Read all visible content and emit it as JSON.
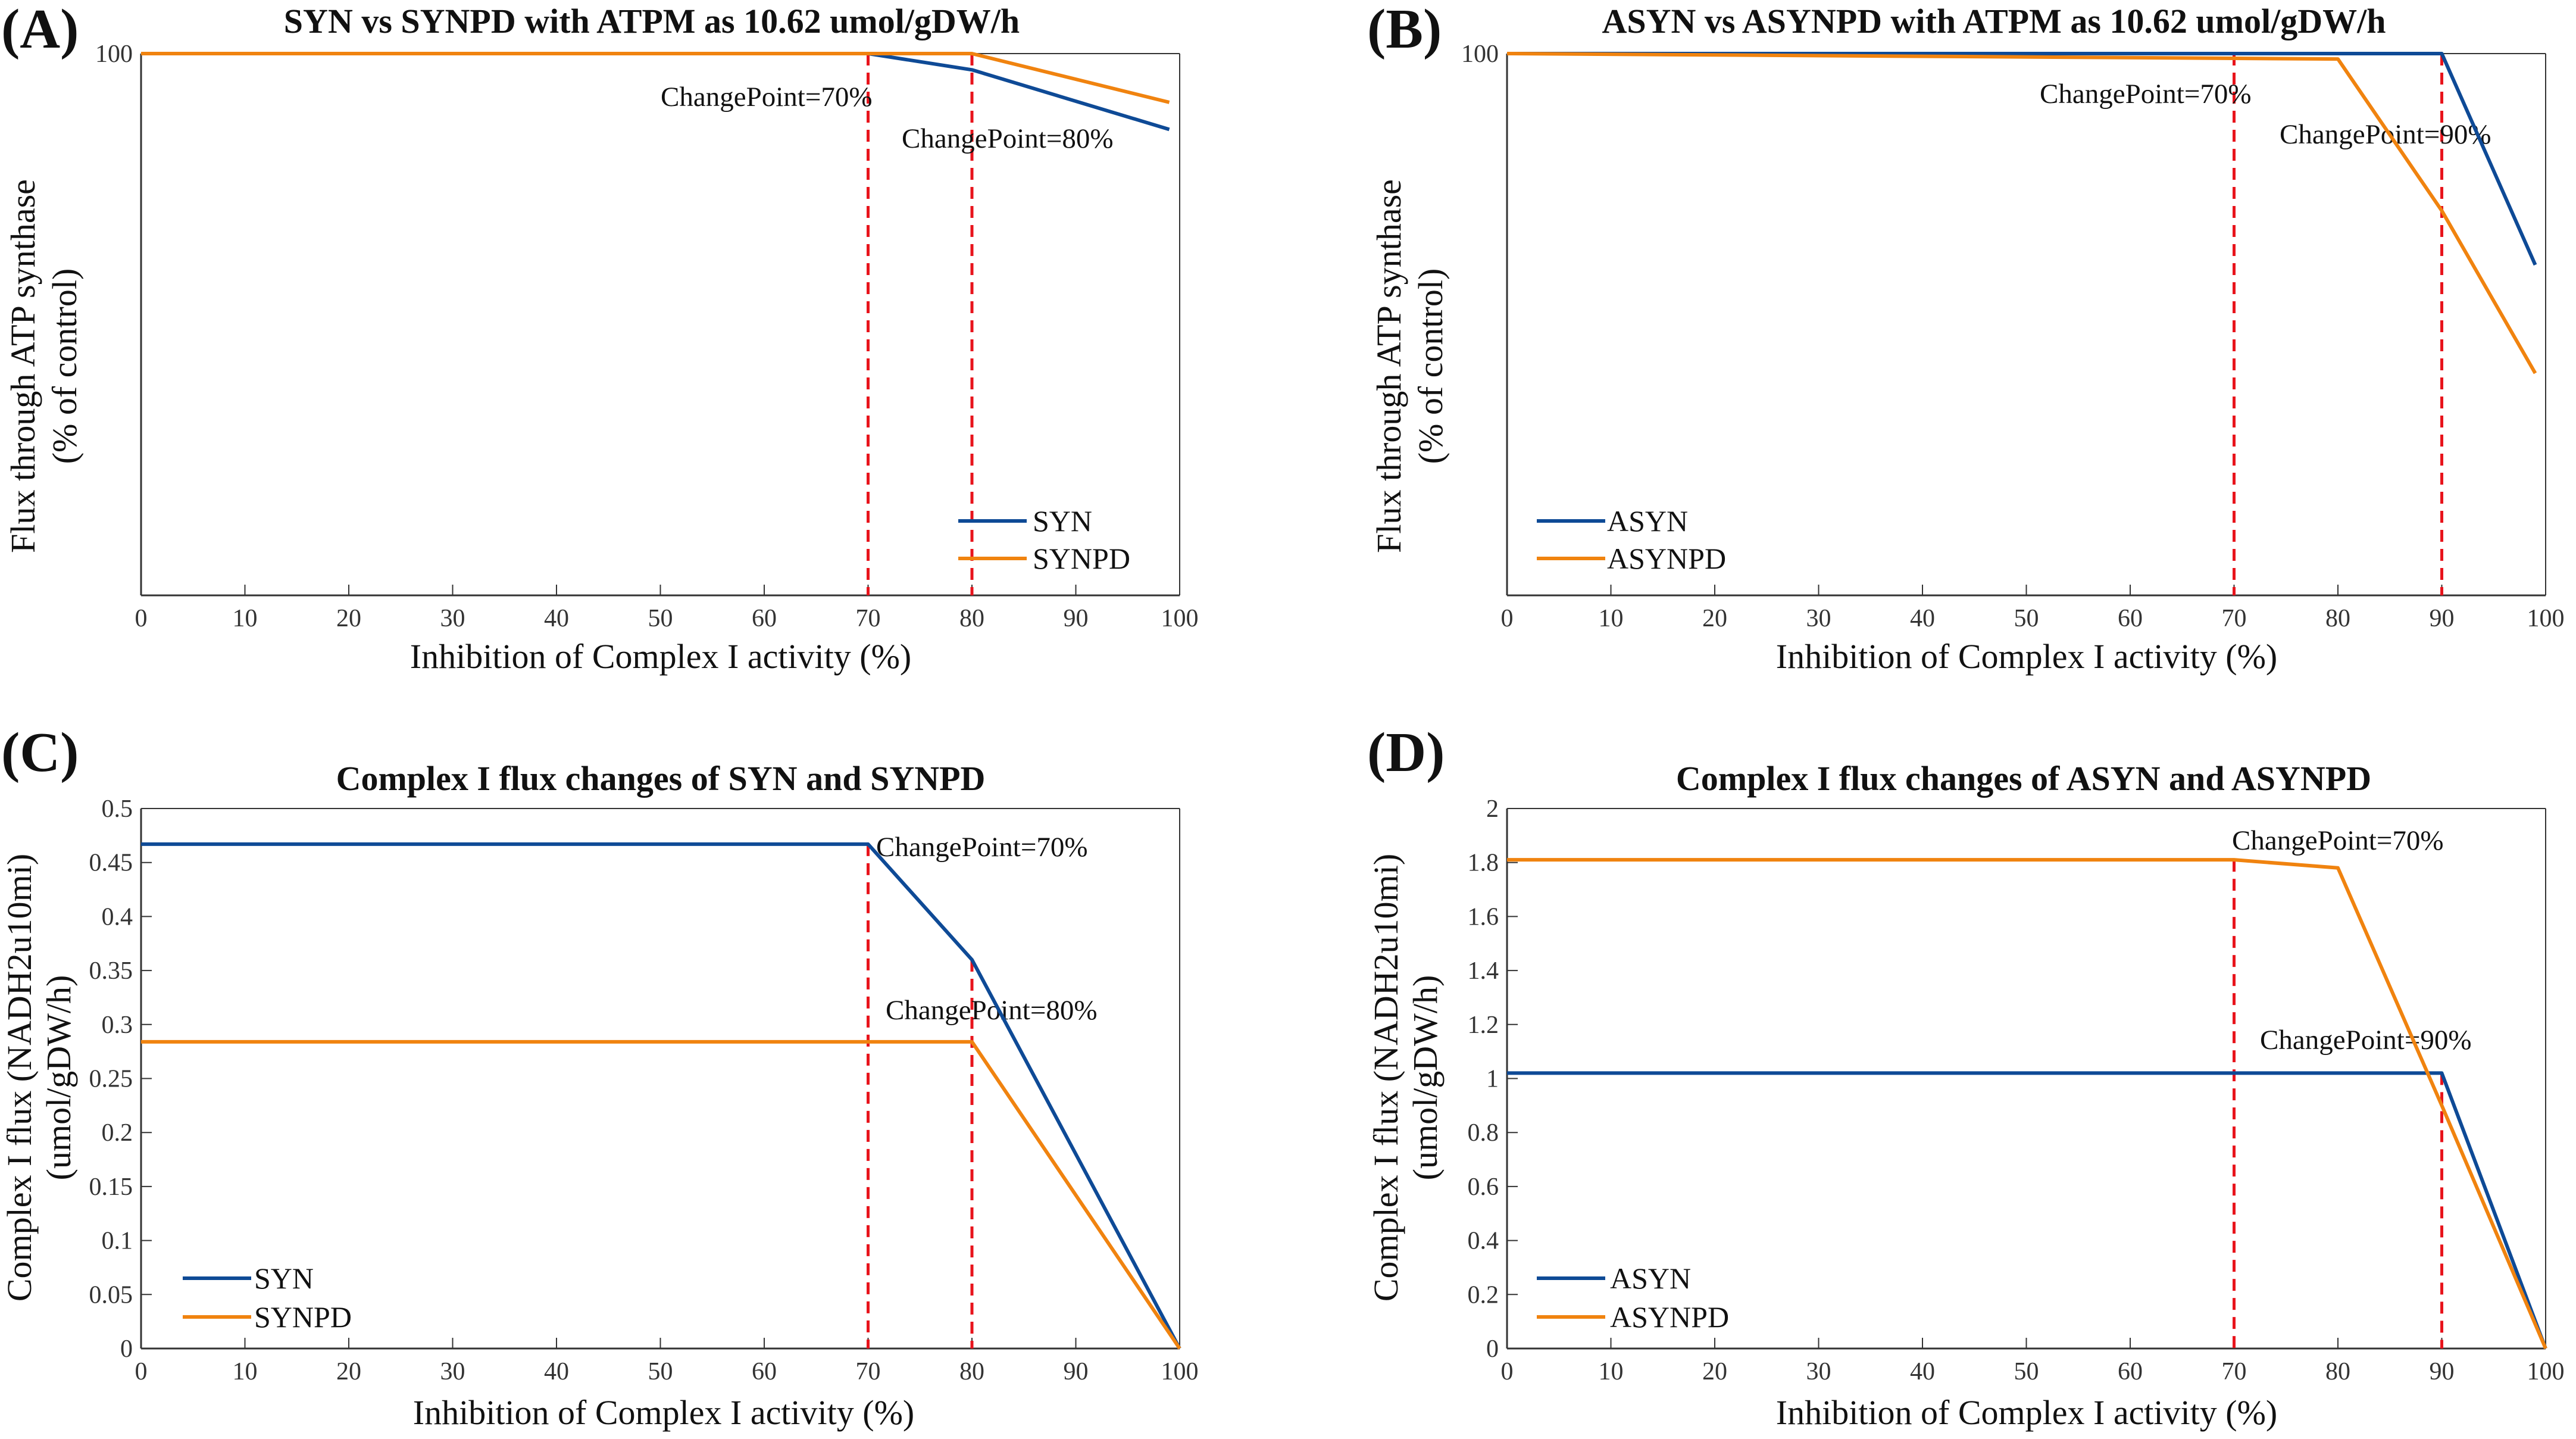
{
  "chart_data": [
    {
      "id": "A",
      "type": "line",
      "panel_letter": "(A)",
      "title": "SYN vs SYNPD with ATPM as 10.62 umol/gDW/h",
      "xlabel": "Inhibition of Complex I activity (%)",
      "ylabel_lines": [
        "Flux through ATP synthase",
        "(% of control)"
      ],
      "xlim": [
        0,
        100
      ],
      "ylim": [
        0,
        100
      ],
      "x_ticks": [
        0,
        10,
        20,
        30,
        40,
        50,
        60,
        70,
        80,
        90,
        100
      ],
      "y_ticks": [
        100
      ],
      "series": [
        {
          "name": "SYN",
          "color": "#0e4a96",
          "x": [
            0,
            70,
            80,
            99
          ],
          "y": [
            100,
            100,
            97,
            86
          ]
        },
        {
          "name": "SYNPD",
          "color": "#f0830f",
          "x": [
            0,
            80,
            99
          ],
          "y": [
            100,
            100,
            91
          ]
        }
      ],
      "change_points": [
        {
          "x": 70,
          "label": "ChangePoint=70%"
        },
        {
          "x": 80,
          "label": "ChangePoint=80%"
        }
      ],
      "legend": "bottom-right"
    },
    {
      "id": "B",
      "type": "line",
      "panel_letter": "(B)",
      "title": "ASYN vs ASYNPD with ATPM as 10.62 umol/gDW/h",
      "xlabel": "Inhibition of Complex I activity (%)",
      "ylabel_lines": [
        "Flux through ATP synthase",
        "(% of control)"
      ],
      "xlim": [
        0,
        100
      ],
      "ylim": [
        0,
        100
      ],
      "x_ticks": [
        0,
        10,
        20,
        30,
        40,
        50,
        60,
        70,
        80,
        90,
        100
      ],
      "y_ticks": [
        100
      ],
      "series": [
        {
          "name": "ASYN",
          "color": "#0e4a96",
          "x": [
            0,
            90,
            99
          ],
          "y": [
            100,
            100,
            61
          ]
        },
        {
          "name": "ASYNPD",
          "color": "#f0830f",
          "x": [
            0,
            80,
            90,
            99
          ],
          "y": [
            100,
            99,
            71,
            41
          ]
        }
      ],
      "change_points": [
        {
          "x": 70,
          "label": "ChangePoint=70%"
        },
        {
          "x": 90,
          "label": "ChangePoint=90%"
        }
      ],
      "legend": "bottom-left"
    },
    {
      "id": "C",
      "type": "line",
      "panel_letter": "(C)",
      "title": "Complex I flux changes of SYN and SYNPD",
      "xlabel": "Inhibition of Complex I activity (%)",
      "ylabel_lines": [
        "Complex I flux (NADH2u10mi)",
        "(umol/gDW/h)"
      ],
      "xlim": [
        0,
        100
      ],
      "ylim": [
        0,
        0.5
      ],
      "x_ticks": [
        0,
        10,
        20,
        30,
        40,
        50,
        60,
        70,
        80,
        90,
        100
      ],
      "y_ticks": [
        0,
        0.05,
        0.1,
        0.15,
        0.2,
        0.25,
        0.3,
        0.35,
        0.4,
        0.45,
        0.5
      ],
      "series": [
        {
          "name": "SYN",
          "color": "#0e4a96",
          "x": [
            0,
            70,
            80,
            100
          ],
          "y": [
            0.467,
            0.467,
            0.36,
            0
          ]
        },
        {
          "name": "SYNPD",
          "color": "#f0830f",
          "x": [
            0,
            80,
            100
          ],
          "y": [
            0.284,
            0.284,
            0
          ]
        }
      ],
      "change_points": [
        {
          "x": 70,
          "label": "ChangePoint=70%"
        },
        {
          "x": 80,
          "label": "ChangePoint=80%"
        }
      ],
      "legend": "bottom-left"
    },
    {
      "id": "D",
      "type": "line",
      "panel_letter": "(D)",
      "title": "Complex I flux changes of ASYN and ASYNPD",
      "xlabel": "Inhibition of Complex I activity (%)",
      "ylabel_lines": [
        "Complex I flux (NADH2u10mi)",
        "(umol/gDW/h)"
      ],
      "xlim": [
        0,
        100
      ],
      "ylim": [
        0,
        2
      ],
      "x_ticks": [
        0,
        10,
        20,
        30,
        40,
        50,
        60,
        70,
        80,
        90,
        100
      ],
      "y_ticks": [
        0,
        0.2,
        0.4,
        0.6,
        0.8,
        1,
        1.2,
        1.4,
        1.6,
        1.8,
        2
      ],
      "series": [
        {
          "name": "ASYN",
          "color": "#0e4a96",
          "x": [
            0,
            90,
            100
          ],
          "y": [
            1.02,
            1.02,
            0
          ]
        },
        {
          "name": "ASYNPD",
          "color": "#f0830f",
          "x": [
            0,
            70,
            80,
            90,
            100
          ],
          "y": [
            1.81,
            1.81,
            1.78,
            0.9,
            0
          ]
        }
      ],
      "change_points": [
        {
          "x": 70,
          "label": "ChangePoint=70%"
        },
        {
          "x": 90,
          "label": "ChangePoint=90%"
        }
      ],
      "legend": "bottom-left"
    }
  ],
  "colors": {
    "change_line": "#e8141c",
    "axis": "#333333"
  }
}
